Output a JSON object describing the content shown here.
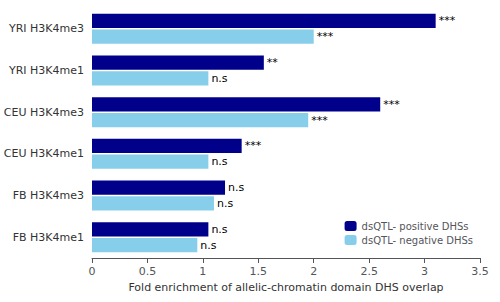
{
  "chart_data": {
    "type": "bar",
    "orientation": "horizontal",
    "xlabel": "Fold enrichment of allelic-chromatin domain DHS overlap",
    "categories": [
      "YRI H3K4me3",
      "YRI H3K4me1",
      "CEU H3K4me3",
      "CEU H3K4me1",
      "FB H3K4me3",
      "FB H3K4me1"
    ],
    "series": [
      {
        "name": "dsQTL- positive DHSs",
        "color": "#00008B",
        "values": [
          3.1,
          1.55,
          2.6,
          1.35,
          1.2,
          1.05
        ],
        "value_labels": [
          "***",
          "**",
          "***",
          "***",
          "n.s",
          "n.s"
        ]
      },
      {
        "name": "dsQTL- negative DHSs",
        "color": "#87CEEB",
        "values": [
          2.0,
          1.05,
          1.95,
          1.05,
          1.1,
          0.95
        ],
        "value_labels": [
          "***",
          "n.s",
          "***",
          "n.s",
          "n.s",
          "n.s"
        ]
      }
    ],
    "xlim": [
      0,
      3.5
    ],
    "xticks": [
      0,
      0.5,
      1.0,
      1.5,
      2.0,
      2.5,
      3.0,
      3.5
    ],
    "grid": false,
    "legend": "lower right"
  }
}
